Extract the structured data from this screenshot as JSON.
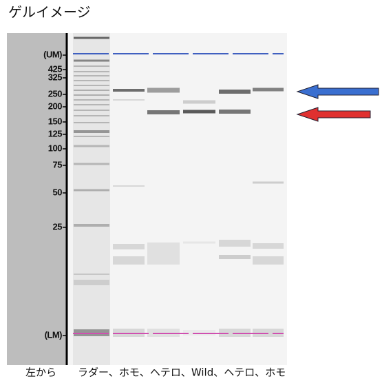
{
  "header": {
    "title": "ゲルイメージ"
  },
  "ladder_labels": [
    "(UM)",
    "425",
    "325",
    "250",
    "200",
    "150",
    "125",
    "100",
    "75",
    "50",
    "25",
    "(LM)"
  ],
  "caption": {
    "prefix": "左から",
    "lanes": "ラダー、ホモ、ヘテロ、Wild、ヘテロ、ホモ"
  }
}
